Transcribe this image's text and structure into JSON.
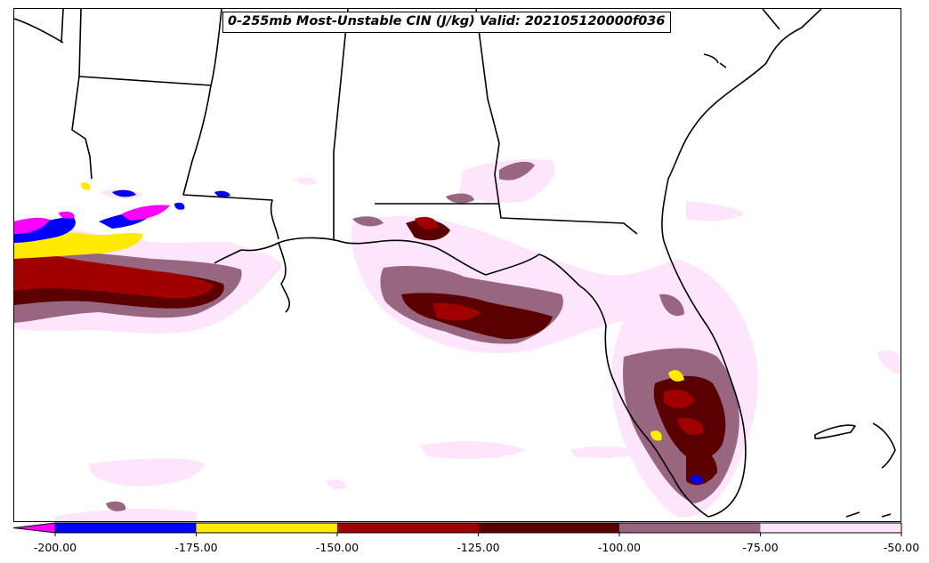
{
  "title": "0-255mb Most-Unstable CIN (J/kg) Valid: 202105120000f036",
  "colorbar": {
    "extend": "min",
    "under_color": "#ff00ff",
    "bins": [
      {
        "from": -200,
        "to": -175,
        "color": "#0000ff"
      },
      {
        "from": -175,
        "to": -150,
        "color": "#ffea00"
      },
      {
        "from": -150,
        "to": -125,
        "color": "#a00000"
      },
      {
        "from": -125,
        "to": -100,
        "color": "#5a0000"
      },
      {
        "from": -100,
        "to": -75,
        "color": "#996680"
      },
      {
        "from": -75,
        "to": -50,
        "color": "#fde6fb"
      }
    ],
    "tick_labels": [
      "-200.00",
      "-175.00",
      "-150.00",
      "-125.00",
      "-100.00",
      "-75.00",
      "-50.00"
    ]
  },
  "colors": {
    "background": "#ffffff",
    "coastline": "#000000"
  }
}
